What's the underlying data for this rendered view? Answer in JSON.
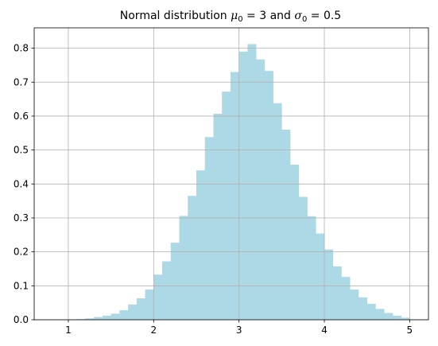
{
  "chart_data": {
    "type": "bar",
    "title": {
      "prefix": "Normal distribution ",
      "mu": "μ",
      "mu_sub": "0",
      "mu_eq": " = 3 and ",
      "sigma": "σ",
      "sigma_sub": "0",
      "sigma_eq": " = 0.5"
    },
    "xlabel": "",
    "ylabel": "",
    "xlim": [
      0.6,
      5.22
    ],
    "ylim": [
      0,
      0.86
    ],
    "xticks": [
      1,
      2,
      3,
      4,
      5
    ],
    "xtick_labels": [
      "1",
      "2",
      "3",
      "4",
      "5"
    ],
    "yticks": [
      0.0,
      0.1,
      0.2,
      0.3,
      0.4,
      0.5,
      0.6,
      0.7,
      0.8
    ],
    "ytick_labels": [
      "0.0",
      "0.1",
      "0.2",
      "0.3",
      "0.4",
      "0.5",
      "0.6",
      "0.7",
      "0.8"
    ],
    "grid": true,
    "bar_color": "#add8e6",
    "bin_width": 0.1,
    "bin_starts": [
      0.8,
      0.9,
      1.0,
      1.1,
      1.2,
      1.3,
      1.4,
      1.5,
      1.6,
      1.7,
      1.8,
      1.9,
      2.0,
      2.1,
      2.2,
      2.3,
      2.4,
      2.5,
      2.6,
      2.7,
      2.8,
      2.9,
      3.0,
      3.1,
      3.2,
      3.3,
      3.4,
      3.5,
      3.6,
      3.7,
      3.8,
      3.9,
      4.0,
      4.1,
      4.2,
      4.3,
      4.4,
      4.5,
      4.6,
      4.7,
      4.8,
      4.9
    ],
    "values": [
      0.0001,
      0.0003,
      0.0008,
      0.002,
      0.004,
      0.008,
      0.012,
      0.018,
      0.028,
      0.045,
      0.063,
      0.089,
      0.133,
      0.172,
      0.227,
      0.306,
      0.365,
      0.44,
      0.538,
      0.607,
      0.672,
      0.73,
      0.79,
      0.812,
      0.767,
      0.733,
      0.638,
      0.56,
      0.457,
      0.362,
      0.305,
      0.254,
      0.207,
      0.157,
      0.126,
      0.089,
      0.066,
      0.047,
      0.032,
      0.02,
      0.012,
      0.006
    ]
  }
}
